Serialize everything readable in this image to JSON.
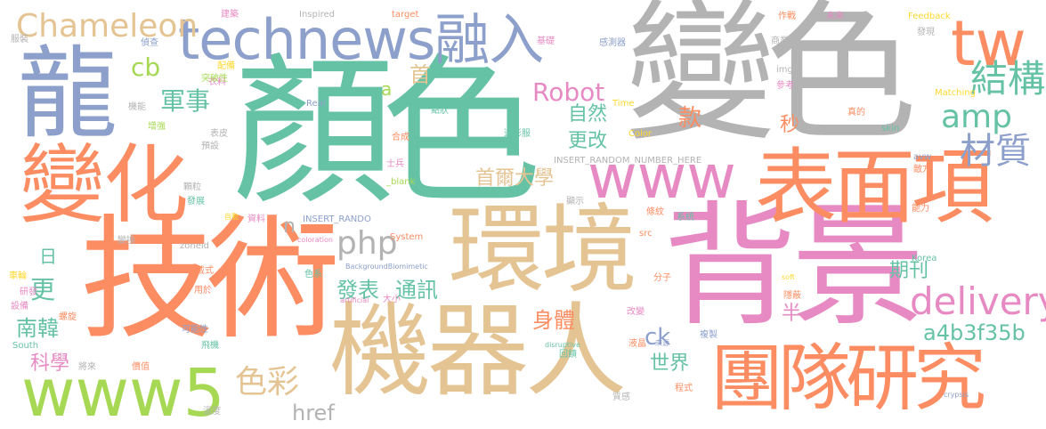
{
  "palette": {
    "green": "#66c2a5",
    "orange": "#fc8d62",
    "blue": "#8da0cb",
    "pink": "#e78ac3",
    "lime": "#a6d854",
    "yellow": "#ffd92f",
    "tan": "#e5c494",
    "gray": "#b3b3b3"
  },
  "words": [
    {
      "text": "顏色",
      "color": "#66c2a5",
      "rank": 1
    },
    {
      "text": "變色",
      "color": "#b3b3b3",
      "rank": 2
    },
    {
      "text": "技術",
      "color": "#fc8d62",
      "rank": 3
    },
    {
      "text": "背景",
      "color": "#e78ac3",
      "rank": 4
    },
    {
      "text": "機器人",
      "color": "#e5c494",
      "rank": 5
    },
    {
      "text": "環境",
      "color": "#e5c494",
      "rank": 6
    },
    {
      "text": "變化",
      "color": "#fc8d62",
      "rank": 7
    },
    {
      "text": "龍",
      "color": "#8da0cb",
      "rank": 8
    },
    {
      "text": "technews融入",
      "color": "#8da0cb",
      "rank": 9
    },
    {
      "text": "表面項",
      "color": "#fc8d62",
      "rank": 10
    },
    {
      "text": "www5",
      "color": "#a6d854",
      "rank": 11
    },
    {
      "text": "團隊研究",
      "color": "#fc8d62",
      "rank": 12
    },
    {
      "text": "www",
      "color": "#e78ac3",
      "rank": 13
    },
    {
      "text": "tw",
      "color": "#fc8d62",
      "rank": 14
    },
    {
      "text": "Chameleon",
      "color": "#e5c494",
      "rank": 15
    },
    {
      "text": "php",
      "color": "#b3b3b3",
      "rank": 16
    },
    {
      "text": "delivery",
      "color": "#e78ac3",
      "rank": 17
    },
    {
      "text": "amp",
      "color": "#66c2a5",
      "rank": 18
    },
    {
      "text": "結構",
      "color": "#66c2a5",
      "rank": 19
    },
    {
      "text": "材質",
      "color": "#8da0cb",
      "rank": 20
    },
    {
      "text": "Robot",
      "color": "#e78ac3",
      "rank": 21
    },
    {
      "text": "a4b3f35b",
      "color": "#66c2a5",
      "rank": 22
    },
    {
      "text": "色彩",
      "color": "#e5c494",
      "rank": 23
    },
    {
      "text": "軍事",
      "color": "#66c2a5",
      "rank": 24
    },
    {
      "text": "cb",
      "color": "#a6d854",
      "rank": 25
    },
    {
      "text": "首爾大學",
      "color": "#e5c494",
      "rank": 26
    },
    {
      "text": "發表",
      "color": "#66c2a5",
      "rank": 27
    },
    {
      "text": "通訊",
      "color": "#66c2a5",
      "rank": 28
    },
    {
      "text": "南韓",
      "color": "#66c2a5",
      "rank": 29
    },
    {
      "text": "身體",
      "color": "#fc8d62",
      "rank": 30
    },
    {
      "text": "世界",
      "color": "#66c2a5",
      "rank": 31
    },
    {
      "text": "科學",
      "color": "#e78ac3",
      "rank": 32
    },
    {
      "text": "期刊",
      "color": "#66c2a5",
      "rank": 33
    },
    {
      "text": "自然",
      "color": "#66c2a5",
      "rank": 34
    },
    {
      "text": "更改",
      "color": "#66c2a5",
      "rank": 35
    },
    {
      "text": "href",
      "color": "#b3b3b3",
      "rank": 36
    },
    {
      "text": "更",
      "color": "#66c2a5",
      "rank": 37
    },
    {
      "text": "款",
      "color": "#fc8d62",
      "rank": 38
    },
    {
      "text": "秒",
      "color": "#fc8d62",
      "rank": 39
    },
    {
      "text": "半",
      "color": "#e78ac3",
      "rank": 40
    },
    {
      "text": "ck",
      "color": "#8da0cb",
      "rank": 41
    },
    {
      "text": "首",
      "color": "#e5c494",
      "rank": 42
    },
    {
      "text": "a",
      "color": "#a6d854",
      "rank": 43
    },
    {
      "text": "n",
      "color": "#b3b3b3",
      "rank": 44
    },
    {
      "text": "日",
      "color": "#66c2a5",
      "rank": 45
    },
    {
      "text": "建築",
      "color": "#e78ac3",
      "rank": 46
    },
    {
      "text": "Inspired",
      "color": "#b3b3b3",
      "rank": 47
    },
    {
      "text": "target",
      "color": "#fc8d62",
      "rank": 48
    },
    {
      "text": "作戰",
      "color": "#fc8d62",
      "rank": 49
    },
    {
      "text": "未來",
      "color": "#e78ac3",
      "rank": 50
    },
    {
      "text": "Feedback",
      "color": "#ffd92f",
      "rank": 51
    },
    {
      "text": "發現",
      "color": "#b3b3b3",
      "rank": 52
    },
    {
      "text": "服裝",
      "color": "#b3b3b3",
      "rank": 53
    },
    {
      "text": "偵查",
      "color": "#8da0cb",
      "rank": 54
    },
    {
      "text": "基礎",
      "color": "#e78ac3",
      "rank": 55
    },
    {
      "text": "感測器",
      "color": "#8da0cb",
      "rank": 56
    },
    {
      "text": "商業",
      "color": "#b3b3b3",
      "rank": 57
    },
    {
      "text": "配備",
      "color": "#ffd92f",
      "rank": 58
    },
    {
      "text": "img",
      "color": "#b3b3b3",
      "rank": 59
    },
    {
      "text": "衣料",
      "color": "#e78ac3",
      "rank": 60
    },
    {
      "text": "突破性",
      "color": "#a6d854",
      "rank": 61
    },
    {
      "text": "參考",
      "color": "#e78ac3",
      "rank": 62
    },
    {
      "text": "Matching",
      "color": "#ffd92f",
      "rank": 63
    },
    {
      "text": "Real",
      "color": "#8da0cb",
      "rank": 64
    },
    {
      "text": "Time",
      "color": "#ffd92f",
      "rank": 65
    },
    {
      "text": "機能",
      "color": "#b3b3b3",
      "rank": 66
    },
    {
      "text": "點狀",
      "color": "#66c2a5",
      "rank": 67
    },
    {
      "text": "真的",
      "color": "#fc8d62",
      "rank": 68
    },
    {
      "text": "增強",
      "color": "#a6d854",
      "rank": 69
    },
    {
      "text": "表皮",
      "color": "#b3b3b3",
      "rank": 70
    },
    {
      "text": "合成",
      "color": "#fc8d62",
      "rank": 71
    },
    {
      "text": "迷彩服",
      "color": "#66c2a5",
      "rank": 72
    },
    {
      "text": "Color",
      "color": "#ffd92f",
      "rank": 73
    },
    {
      "text": "skin",
      "color": "#66c2a5",
      "rank": 74
    },
    {
      "text": "預設",
      "color": "#b3b3b3",
      "rank": 75
    },
    {
      "text": "INSERT_RANDOM_NUMBER_HERE",
      "color": "#b3b3b3",
      "rank": 76
    },
    {
      "text": "士兵",
      "color": "#e78ac3",
      "rank": 77
    },
    {
      "text": "avw",
      "color": "#8da0cb",
      "rank": 78
    },
    {
      "text": "敵方",
      "color": "#fc8d62",
      "rank": 79
    },
    {
      "text": "顆粒",
      "color": "#b3b3b3",
      "rank": 80
    },
    {
      "text": "_blank",
      "color": "#a6d854",
      "rank": 81
    },
    {
      "text": "發展",
      "color": "#66c2a5",
      "rank": 82
    },
    {
      "text": "顯示",
      "color": "#b3b3b3",
      "rank": 83
    },
    {
      "text": "條紋",
      "color": "#fc8d62",
      "rank": 84
    },
    {
      "text": "能力",
      "color": "#fc8d62",
      "rank": 85
    },
    {
      "text": "系統",
      "color": "#66c2a5",
      "rank": 86
    },
    {
      "text": "自動",
      "color": "#ffd92f",
      "rank": 87
    },
    {
      "text": "資料",
      "color": "#e78ac3",
      "rank": 88
    },
    {
      "text": "INSERT_RANDO",
      "color": "#8da0cb",
      "rank": 89
    },
    {
      "text": "變換",
      "color": "#b3b3b3",
      "rank": 90
    },
    {
      "text": "coloration",
      "color": "#e78ac3",
      "rank": 91
    },
    {
      "text": "System",
      "color": "#fc8d62",
      "rank": 92
    },
    {
      "text": "src",
      "color": "#fc8d62",
      "rank": 93
    },
    {
      "text": "zoneid",
      "color": "#b3b3b3",
      "rank": 94
    },
    {
      "text": "色系",
      "color": "#66c2a5",
      "rank": 95
    },
    {
      "text": "BackgroundBiomimetic",
      "color": "#8da0cb",
      "rank": 96
    },
    {
      "text": "Korea",
      "color": "#66c2a5",
      "rank": 97
    },
    {
      "text": "車輪",
      "color": "#ffd92f",
      "rank": 98
    },
    {
      "text": "穿戴式",
      "color": "#fc8d62",
      "rank": 99
    },
    {
      "text": "soft",
      "color": "#ffd92f",
      "rank": 100
    },
    {
      "text": "分子",
      "color": "#fc8d62",
      "rank": 101
    },
    {
      "text": "研發",
      "color": "#e78ac3",
      "rank": 102
    },
    {
      "text": "用於",
      "color": "#fc8d62",
      "rank": 103
    },
    {
      "text": "artificial",
      "color": "#e78ac3",
      "rank": 104
    },
    {
      "text": "大小",
      "color": "#e78ac3",
      "rank": 105
    },
    {
      "text": "設備",
      "color": "#e78ac3",
      "rank": 106
    },
    {
      "text": "隱蔽",
      "color": "#fc8d62",
      "rank": 107
    },
    {
      "text": "改變",
      "color": "#e78ac3",
      "rank": 108
    },
    {
      "text": "螺旋",
      "color": "#fc8d62",
      "rank": 109
    },
    {
      "text": "可能性",
      "color": "#8da0cb",
      "rank": 110
    },
    {
      "text": "液晶",
      "color": "#fc8d62",
      "rank": 111
    },
    {
      "text": "來源",
      "color": "#8da0cb",
      "rank": 112
    },
    {
      "text": "複製",
      "color": "#8da0cb",
      "rank": 113
    },
    {
      "text": "South",
      "color": "#66c2a5",
      "rank": 114
    },
    {
      "text": "飛機",
      "color": "#66c2a5",
      "rank": 115
    },
    {
      "text": "disruptive",
      "color": "#66c2a5",
      "rank": 116
    },
    {
      "text": "回饋",
      "color": "#66c2a5",
      "rank": 117
    },
    {
      "text": "將來",
      "color": "#b3b3b3",
      "rank": 118
    },
    {
      "text": "價值",
      "color": "#fc8d62",
      "rank": 119
    },
    {
      "text": "程式",
      "color": "#fc8d62",
      "rank": 120
    },
    {
      "text": "質感",
      "color": "#b3b3b3",
      "rank": 121
    },
    {
      "text": "crypsis",
      "color": "#8da0cb",
      "rank": 122
    },
    {
      "text": "溫度",
      "color": "#b3b3b3",
      "rank": 123
    }
  ]
}
